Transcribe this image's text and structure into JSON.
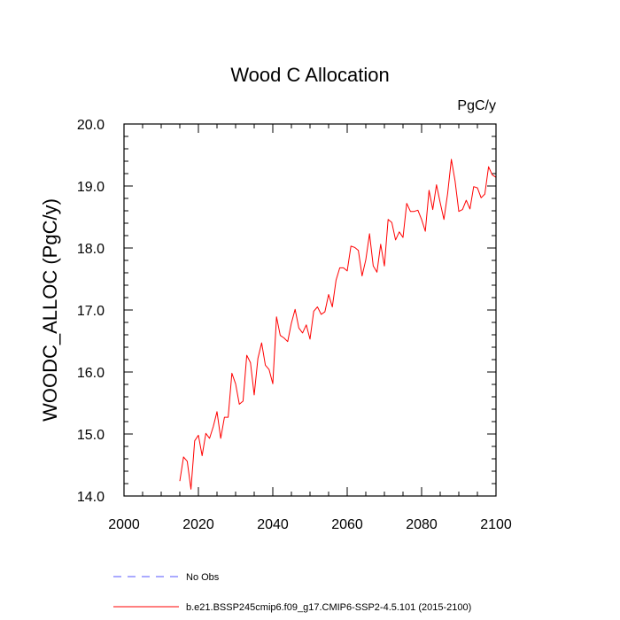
{
  "chart_data": {
    "type": "line",
    "title": "Wood C Allocation",
    "units": "PgC/y",
    "ylabel": "WOODC_ALLOC  (PgC/y)",
    "xlabel": "",
    "xlim": [
      2000,
      2100
    ],
    "ylim": [
      14.0,
      20.0
    ],
    "xticks": [
      "2000",
      "2020",
      "2040",
      "2060",
      "2080",
      "2100"
    ],
    "yticks": [
      "14.0",
      "15.0",
      "16.0",
      "17.0",
      "18.0",
      "19.0",
      "20.0"
    ],
    "grid": false,
    "legend": {
      "placement": "bottom",
      "entries": [
        {
          "label": "No Obs",
          "color": "#5555ff",
          "style": "dashed"
        },
        {
          "label": "b.e21.BSSP245cmip6.f09_g17.CMIP6-SSP2-4.5.101 (2015-2100)",
          "color": "#ff0000",
          "style": "solid"
        }
      ]
    },
    "series": [
      {
        "name": "b.e21.BSSP245cmip6.f09_g17.CMIP6-SSP2-4.5.101 (2015-2100)",
        "color": "#ff0000",
        "x": [
          2015,
          2016,
          2017,
          2018,
          2019,
          2020,
          2021,
          2022,
          2023,
          2024,
          2025,
          2026,
          2027,
          2028,
          2029,
          2030,
          2031,
          2032,
          2033,
          2034,
          2035,
          2036,
          2037,
          2038,
          2039,
          2040,
          2041,
          2042,
          2043,
          2044,
          2045,
          2046,
          2047,
          2048,
          2049,
          2050,
          2051,
          2052,
          2053,
          2054,
          2055,
          2056,
          2057,
          2058,
          2059,
          2060,
          2061,
          2062,
          2063,
          2064,
          2065,
          2066,
          2067,
          2068,
          2069,
          2070,
          2071,
          2072,
          2073,
          2074,
          2075,
          2076,
          2077,
          2078,
          2079,
          2080,
          2081,
          2082,
          2083,
          2084,
          2085,
          2086,
          2087,
          2088,
          2089,
          2090,
          2091,
          2092,
          2093,
          2094,
          2095,
          2096,
          2097,
          2098,
          2099,
          2100
        ],
        "y": [
          14.24,
          14.63,
          14.56,
          14.11,
          14.89,
          14.98,
          14.65,
          15.01,
          14.93,
          15.12,
          15.36,
          14.93,
          15.27,
          15.27,
          15.98,
          15.81,
          15.48,
          15.53,
          16.27,
          16.15,
          15.63,
          16.22,
          16.47,
          16.11,
          16.04,
          15.81,
          16.89,
          16.59,
          16.55,
          16.49,
          16.79,
          17.01,
          16.71,
          16.63,
          16.76,
          16.53,
          16.98,
          17.05,
          16.93,
          16.97,
          17.25,
          17.05,
          17.48,
          17.68,
          17.68,
          17.63,
          18.03,
          18.01,
          17.96,
          17.55,
          17.81,
          18.23,
          17.71,
          17.61,
          18.06,
          17.71,
          18.46,
          18.41,
          18.13,
          18.26,
          18.17,
          18.72,
          18.59,
          18.59,
          18.61,
          18.46,
          18.27,
          18.93,
          18.62,
          19.02,
          18.73,
          18.46,
          18.88,
          19.43,
          19.08,
          18.59,
          18.62,
          18.77,
          18.63,
          18.99,
          18.97,
          18.81,
          18.87,
          19.31,
          19.18,
          19.14
        ]
      }
    ]
  }
}
